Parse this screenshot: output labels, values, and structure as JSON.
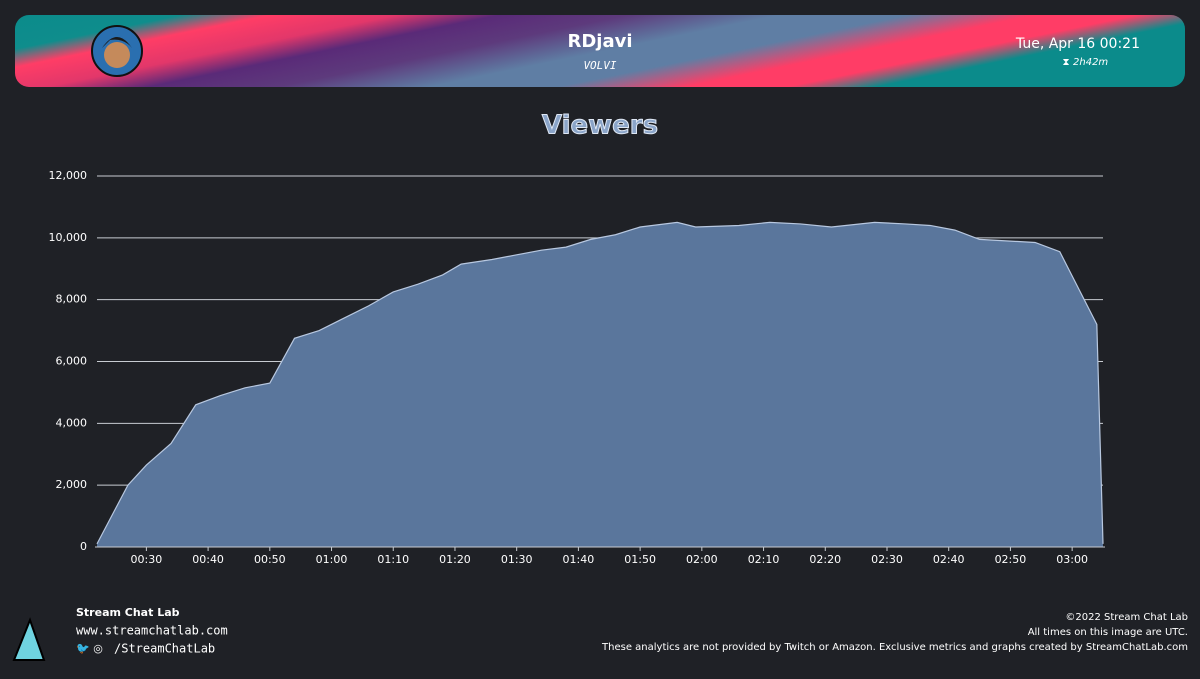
{
  "header": {
    "name": "RDjavi",
    "subtitle": "VOLVI",
    "date": "Tue, Apr 16 00:21",
    "duration": "2h42m"
  },
  "footer": {
    "brand": "Stream Chat Lab",
    "url": "www.streamchatlab.com",
    "social": "/StreamChatLab",
    "copyright": "©2022 Stream Chat Lab",
    "utc_note": "All times on this image are UTC.",
    "disclaimer": "These analytics are not provided by Twitch or Amazon. Exclusive metrics and graphs created by StreamChatLab.com"
  },
  "chart_data": {
    "type": "area",
    "title": "Viewers",
    "color": "#5a769c",
    "grid": true,
    "x": [
      22,
      27,
      30,
      34,
      38,
      42,
      46,
      50,
      54,
      58,
      62,
      66,
      70,
      74,
      78,
      81,
      86,
      90,
      94,
      98,
      102,
      106,
      110,
      116,
      119,
      126,
      131,
      136,
      141,
      148,
      153,
      157,
      161,
      165,
      174,
      178,
      184,
      185
    ],
    "values": [
      100,
      2000,
      2650,
      3350,
      4600,
      4900,
      5150,
      5300,
      6750,
      7000,
      7400,
      7800,
      8250,
      8500,
      8800,
      9150,
      9300,
      9450,
      9600,
      9700,
      9950,
      10100,
      10350,
      10500,
      10350,
      10400,
      10500,
      10450,
      10350,
      10500,
      10450,
      10400,
      10250,
      9950,
      9850,
      9550,
      7200,
      100
    ],
    "xlim": [
      22,
      185
    ],
    "xticks": [
      {
        "value": 30,
        "label": "00:30"
      },
      {
        "value": 40,
        "label": "00:40"
      },
      {
        "value": 50,
        "label": "00:50"
      },
      {
        "value": 60,
        "label": "01:00"
      },
      {
        "value": 70,
        "label": "01:10"
      },
      {
        "value": 80,
        "label": "01:20"
      },
      {
        "value": 90,
        "label": "01:30"
      },
      {
        "value": 100,
        "label": "01:40"
      },
      {
        "value": 110,
        "label": "01:50"
      },
      {
        "value": 120,
        "label": "02:00"
      },
      {
        "value": 130,
        "label": "02:10"
      },
      {
        "value": 140,
        "label": "02:20"
      },
      {
        "value": 150,
        "label": "02:30"
      },
      {
        "value": 160,
        "label": "02:40"
      },
      {
        "value": 170,
        "label": "02:50"
      },
      {
        "value": 180,
        "label": "03:00"
      }
    ],
    "ylim": [
      0,
      12000
    ],
    "yticks": [
      0,
      {
        "value": 2000,
        "label": "2,000"
      },
      {
        "value": 4000,
        "label": "4,000"
      },
      {
        "value": 6000,
        "label": "6,000"
      },
      {
        "value": 8000,
        "label": "8,000"
      },
      {
        "value": 10000,
        "label": "10,000"
      },
      {
        "value": 12000,
        "label": "12,000"
      }
    ]
  }
}
